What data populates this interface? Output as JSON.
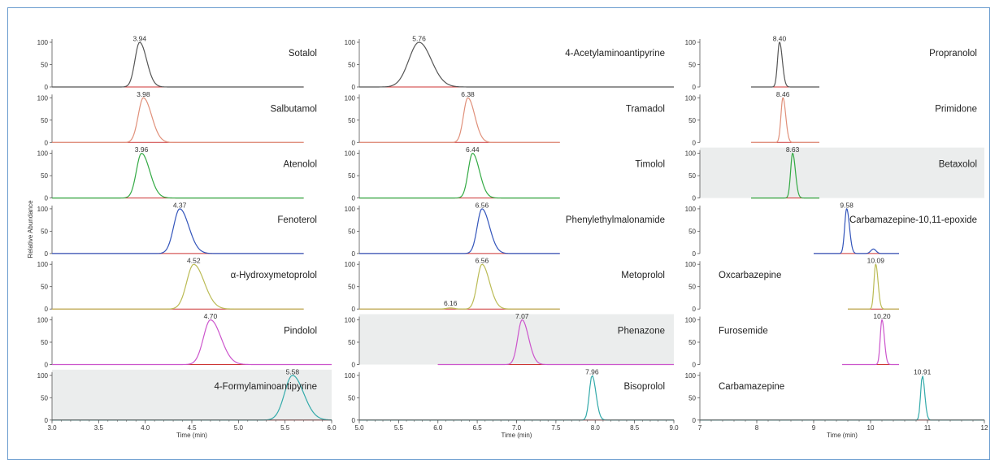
{
  "chart_data": [
    {
      "type": "line",
      "column": "left",
      "xlabel": "Time (min)",
      "ylabel": "Relative Abundance",
      "xlim": [
        3.0,
        6.0
      ],
      "ylim": [
        0,
        100
      ],
      "x_ticks": [
        "3.0",
        "3.5",
        "4.0",
        "4.5",
        "5.0",
        "5.5",
        "6.0"
      ],
      "y_ticks": [
        "0",
        "50",
        "100"
      ],
      "series": [
        {
          "name": "Sotalol",
          "peak_rt": 3.94,
          "peak_label": "3.94",
          "peak_width": 0.05,
          "tail": 1.5,
          "color": "#555555",
          "baseline_color": "#cc3333",
          "x_range": [
            3.0,
            5.7
          ],
          "shaded": false
        },
        {
          "name": "Salbutamol",
          "peak_rt": 3.98,
          "peak_label": "3.98",
          "peak_width": 0.055,
          "tail": 1.6,
          "color": "#e0907a",
          "baseline_color": "#cc3333",
          "x_range": [
            3.0,
            5.7
          ],
          "shaded": false
        },
        {
          "name": "Atenolol",
          "peak_rt": 3.96,
          "peak_label": "3.96",
          "peak_width": 0.055,
          "tail": 1.6,
          "color": "#33aa44",
          "baseline_color": "#cc3333",
          "x_range": [
            3.0,
            5.7
          ],
          "shaded": false
        },
        {
          "name": "Fenoterol",
          "peak_rt": 4.37,
          "peak_label": "4.37",
          "peak_width": 0.065,
          "tail": 1.5,
          "color": "#3355bb",
          "baseline_color": "#cc3333",
          "x_range": [
            3.0,
            5.7
          ],
          "shaded": false
        },
        {
          "name": "α-Hydroxymetoprolol",
          "peak_rt": 4.52,
          "peak_label": "4.52",
          "peak_width": 0.075,
          "tail": 1.5,
          "color": "#bbbb55",
          "baseline_color": "#cc3333",
          "x_range": [
            3.0,
            5.7
          ],
          "shaded": false
        },
        {
          "name": "Pindolol",
          "peak_rt": 4.7,
          "peak_label": "4.70",
          "peak_width": 0.075,
          "tail": 1.5,
          "color": "#cc55cc",
          "baseline_color": "#cc3333",
          "x_range": [
            3.0,
            6.0
          ],
          "shaded": false
        },
        {
          "name": "4-Formylaminoantipyrine",
          "peak_rt": 5.58,
          "peak_label": "5.58",
          "peak_width": 0.085,
          "tail": 1.4,
          "color": "#33aaaa",
          "baseline_color": "#cc3333",
          "x_range": [
            3.0,
            6.0
          ],
          "shaded": true
        }
      ]
    },
    {
      "type": "line",
      "column": "middle",
      "xlabel": "Time (min)",
      "ylabel": "",
      "xlim": [
        5.0,
        9.0
      ],
      "ylim": [
        0,
        100
      ],
      "x_ticks": [
        "5.0",
        "5.5",
        "6.0",
        "6.5",
        "7.0",
        "7.5",
        "8.0",
        "8.5",
        "9.0"
      ],
      "y_ticks": [
        "0",
        "50",
        "100"
      ],
      "series": [
        {
          "name": "4-Acetylaminoantipyrine",
          "peak_rt": 5.76,
          "peak_label": "5.76",
          "peak_width": 0.13,
          "tail": 1.2,
          "color": "#555555",
          "baseline_color": "#cc3333",
          "x_range": [
            5.0,
            9.0
          ],
          "shaded": false
        },
        {
          "name": "Tramadol",
          "peak_rt": 6.38,
          "peak_label": "6.38",
          "peak_width": 0.055,
          "tail": 1.6,
          "color": "#e0907a",
          "baseline_color": "#cc3333",
          "x_range": [
            5.0,
            7.55
          ],
          "shaded": false
        },
        {
          "name": "Timolol",
          "peak_rt": 6.44,
          "peak_label": "6.44",
          "peak_width": 0.055,
          "tail": 1.6,
          "color": "#33aa44",
          "baseline_color": "#cc3333",
          "x_range": [
            5.0,
            7.55
          ],
          "shaded": false
        },
        {
          "name": "Phenylethylmalonamide",
          "peak_rt": 6.56,
          "peak_label": "6.56",
          "peak_width": 0.06,
          "tail": 1.6,
          "color": "#3355bb",
          "baseline_color": "#cc3333",
          "x_range": [
            5.0,
            7.55
          ],
          "shaded": false
        },
        {
          "name": "Metoprolol",
          "peak_rt": 6.56,
          "peak_label": "6.56",
          "peak_width": 0.06,
          "tail": 1.6,
          "color": "#bbbb55",
          "baseline_color": "#cc3333",
          "x_range": [
            5.0,
            7.55
          ],
          "shaded": false,
          "extra_label": "6.16",
          "extra_rt": 6.16
        },
        {
          "name": "Phenazone",
          "peak_rt": 7.07,
          "peak_label": "7.07",
          "peak_width": 0.055,
          "tail": 1.5,
          "color": "#cc55cc",
          "baseline_color": "#cc3333",
          "x_range": [
            6.0,
            9.0
          ],
          "shaded": true
        },
        {
          "name": "Bisoprolol",
          "peak_rt": 7.96,
          "peak_label": "7.96",
          "peak_width": 0.035,
          "tail": 1.4,
          "color": "#33aaaa",
          "baseline_color": "#cc3333",
          "x_range": [
            5.0,
            9.0
          ],
          "shaded": false
        }
      ]
    },
    {
      "type": "line",
      "column": "right",
      "xlabel": "Time (min)",
      "ylabel": "",
      "xlim": [
        7.0,
        12.0
      ],
      "ylim": [
        0,
        100
      ],
      "x_ticks": [
        "7",
        "8",
        "9",
        "10",
        "11",
        "12"
      ],
      "y_ticks": [
        "0",
        "50",
        "100"
      ],
      "series": [
        {
          "name": "Propranolol",
          "peak_rt": 8.4,
          "peak_label": "8.40",
          "peak_width": 0.035,
          "tail": 1.4,
          "color": "#555555",
          "baseline_color": "#cc3333",
          "x_range": [
            7.9,
            9.1
          ],
          "shaded": false
        },
        {
          "name": "Primidone",
          "peak_rt": 8.46,
          "peak_label": "8.46",
          "peak_width": 0.035,
          "tail": 1.4,
          "color": "#e0907a",
          "baseline_color": "#cc3333",
          "x_range": [
            7.9,
            9.1
          ],
          "shaded": false
        },
        {
          "name": "Betaxolol",
          "peak_rt": 8.63,
          "peak_label": "8.63",
          "peak_width": 0.035,
          "tail": 1.4,
          "color": "#33aa44",
          "baseline_color": "#cc3333",
          "x_range": [
            7.9,
            9.1
          ],
          "shaded": true
        },
        {
          "name": "Carbamazepine-10,11-epoxide",
          "peak_rt": 9.58,
          "peak_label": "9.58",
          "peak_width": 0.035,
          "tail": 1.4,
          "color": "#3355bb",
          "baseline_color": "#cc3333",
          "x_range": [
            9.0,
            10.5
          ],
          "shaded": false,
          "minor_rt": 10.05,
          "minor_height": 0.1
        },
        {
          "name": "Oxcarbazepine",
          "peak_rt": 10.09,
          "peak_label": "10.09",
          "peak_width": 0.03,
          "tail": 1.4,
          "color": "#bbbb55",
          "baseline_color": "#cc3333",
          "x_range": [
            9.6,
            10.5
          ],
          "shaded": false
        },
        {
          "name": "Furosemide",
          "peak_rt": 10.2,
          "peak_label": "10.20",
          "peak_width": 0.03,
          "tail": 1.4,
          "color": "#cc55cc",
          "baseline_color": "#cc3333",
          "x_range": [
            9.5,
            10.5
          ],
          "shaded": false
        },
        {
          "name": "Carbamazepine",
          "peak_rt": 10.91,
          "peak_label": "10.91",
          "peak_width": 0.03,
          "tail": 1.4,
          "color": "#33aaaa",
          "baseline_color": "#cc3333",
          "x_range": [
            7.0,
            12.0
          ],
          "shaded": false
        }
      ]
    }
  ],
  "colors": {
    "frame_border": "#6a9ccf",
    "shade": "#ebeded",
    "axis": "#555555"
  }
}
